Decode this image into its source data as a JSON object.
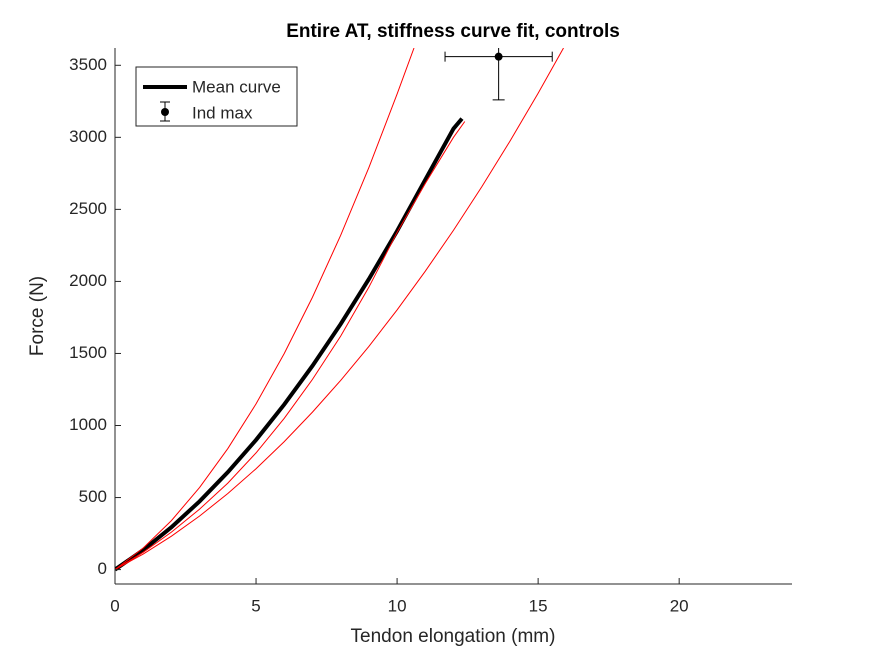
{
  "chart_data": {
    "type": "line",
    "title": "Entire AT, stiffness curve fit, controls",
    "xlabel": "Tendon elongation (mm)",
    "ylabel": "Force (N)",
    "xlim": [
      0,
      24
    ],
    "ylim": [
      -100,
      3620
    ],
    "xticks": [
      0,
      5,
      10,
      15,
      20
    ],
    "yticks": [
      0,
      500,
      1000,
      1500,
      2000,
      2500,
      3000,
      3500
    ],
    "legend": "upper left",
    "series": [
      {
        "name": "Mean curve",
        "color": "#000000",
        "width": 4,
        "x": [
          0,
          1,
          2,
          3,
          4,
          5,
          6,
          7,
          8,
          9,
          10,
          11,
          12,
          12.3
        ],
        "values": [
          0,
          136,
          294,
          474,
          676,
          900,
          1146,
          1414,
          1704,
          2016,
          2350,
          2706,
          3060,
          3130
        ]
      },
      {
        "color": "#ff0000",
        "width": 1,
        "x": [
          0,
          1,
          2,
          3,
          4,
          5,
          6,
          7,
          8,
          9,
          10,
          10.6
        ],
        "values": [
          0,
          150,
          340,
          570,
          840,
          1150,
          1500,
          1890,
          2320,
          2790,
          3300,
          3620
        ]
      },
      {
        "color": "#ff0000",
        "width": 1,
        "x": [
          0,
          1,
          2,
          3,
          4,
          5,
          6,
          7,
          8,
          9,
          10,
          11,
          12,
          12.4
        ],
        "values": [
          0,
          120,
          260,
          420,
          600,
          810,
          1050,
          1320,
          1620,
          1960,
          2340,
          2680,
          3000,
          3110
        ]
      },
      {
        "color": "#ff0000",
        "width": 1,
        "x": [
          0,
          1,
          2,
          3,
          4,
          5,
          6,
          7,
          8,
          9,
          10,
          11,
          12,
          13,
          14,
          15,
          15.9
        ],
        "values": [
          0,
          108,
          232,
          372,
          528,
          700,
          888,
          1093,
          1313,
          1549,
          1802,
          2071,
          2355,
          2656,
          2973,
          3306,
          3620
        ]
      }
    ],
    "errorbar": {
      "name": "Ind max",
      "color": "#000000",
      "x": 13.6,
      "y": 3560,
      "xerr": 1.9,
      "yerr": 300
    }
  }
}
